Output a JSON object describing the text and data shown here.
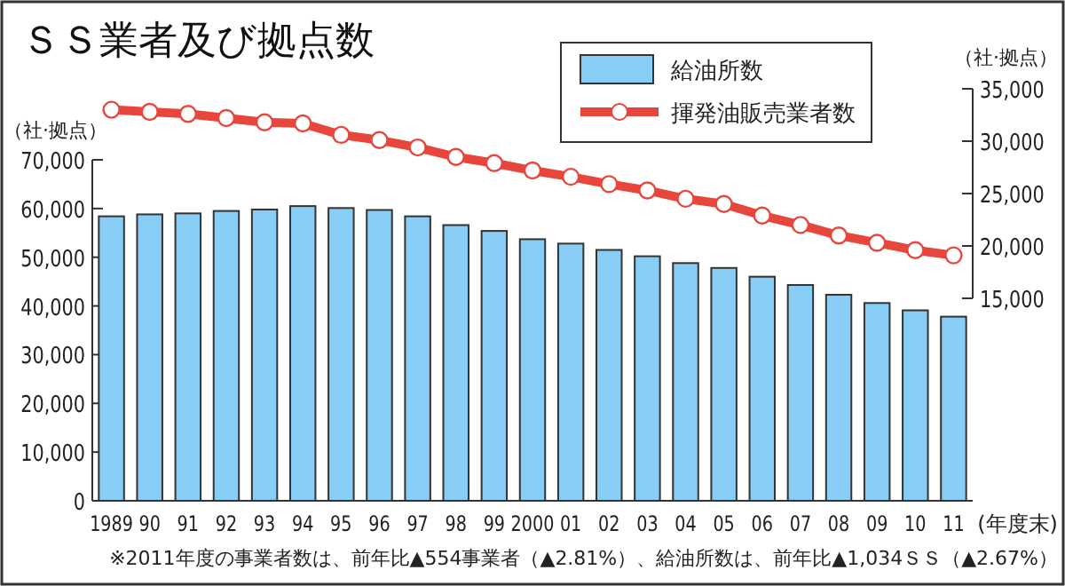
{
  "chart_data": {
    "type": "bar",
    "title": "ＳＳ業者及び拠点数",
    "categories": [
      "1989",
      "90",
      "91",
      "92",
      "93",
      "94",
      "95",
      "96",
      "97",
      "98",
      "99",
      "2000",
      "01",
      "02",
      "03",
      "04",
      "05",
      "06",
      "07",
      "08",
      "09",
      "10",
      "11"
    ],
    "series": [
      {
        "name": "給油所数",
        "color": "#87cdf5",
        "values": [
          58400,
          58800,
          59000,
          59500,
          59800,
          60500,
          60100,
          59700,
          58400,
          56600,
          55400,
          53700,
          52800,
          51500,
          50200,
          48800,
          47800,
          46000,
          44300,
          42300,
          40600,
          39100,
          37800
        ]
      },
      {
        "name": "揮発油販売業者数",
        "type": "line",
        "axis": "y2",
        "color": "#e8453c",
        "marker": "circle",
        "values": [
          33000,
          32800,
          32600,
          32200,
          31800,
          31700,
          30600,
          30100,
          29400,
          28500,
          27900,
          27200,
          26600,
          25900,
          25300,
          24500,
          24000,
          22900,
          22000,
          21000,
          20300,
          19600,
          19100
        ]
      }
    ],
    "ylabel": "（社·拠点）",
    "y2label": "（社·拠点）",
    "xlabel": "(年度末)",
    "ylim": [
      0,
      70000
    ],
    "yticks": [
      0,
      {
        "value": 10000,
        "label": "10,000"
      },
      {
        "value": 20000,
        "label": "20,000"
      },
      {
        "value": 30000,
        "label": "30,000"
      },
      {
        "value": 40000,
        "label": "40,000"
      },
      {
        "value": 50000,
        "label": "50,000"
      },
      {
        "value": 60000,
        "label": "60,000"
      },
      {
        "value": 70000,
        "label": "70,000"
      }
    ],
    "y2lim": [
      15000,
      35000
    ],
    "y2ticks": [
      {
        "value": 15000,
        "label": "15,000"
      },
      {
        "value": 20000,
        "label": "20,000"
      },
      {
        "value": 25000,
        "label": "25,000"
      },
      {
        "value": 30000,
        "label": "30,000"
      },
      {
        "value": 35000,
        "label": "35,000"
      }
    ],
    "legend": "top right",
    "annotations": [
      "※2011年度の事業者数は、前年比▲554事業者（▲2.81%）、給油所数は、前年比▲1,034ＳＳ（▲2.67%）"
    ]
  }
}
